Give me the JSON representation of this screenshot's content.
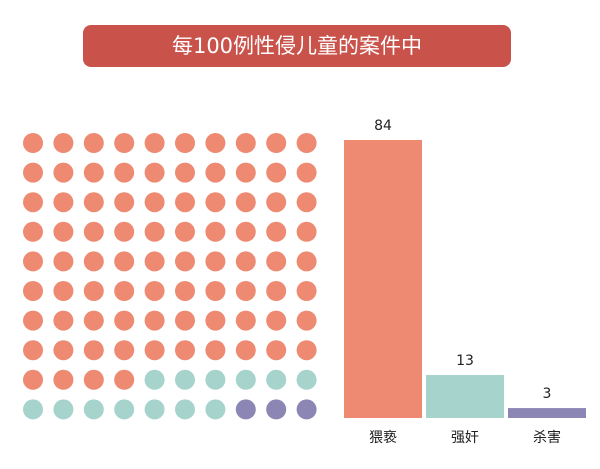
{
  "chart_data": {
    "type": "bar",
    "title": "每100例性侵儿童的案件中",
    "categories": [
      "猥亵",
      "强奸",
      "杀害"
    ],
    "values": [
      84,
      13,
      3
    ],
    "colors": [
      "#ee8a72",
      "#a6d4cd",
      "#8b86b4"
    ]
  }
}
